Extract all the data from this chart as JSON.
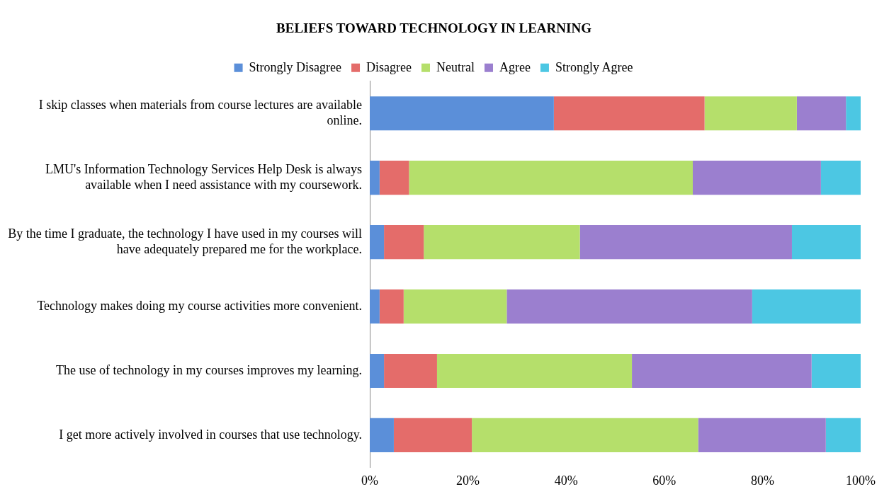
{
  "chart_data": {
    "type": "bar",
    "orientation": "horizontal",
    "stacked": true,
    "title": "BELIEFS TOWARD TECHNOLOGY IN LEARNING",
    "categories": [
      "I skip classes when materials from course lectures are available online.",
      "LMU's Information Technology Services Help Desk is always available when I need assistance with my coursework.",
      "By the time I graduate, the technology I have used in my courses will have adequately prepared me for the workplace.",
      "Technology makes doing my course activities more convenient.",
      "The use of technology in my courses improves my learning.",
      "I get more actively involved in courses that use technology."
    ],
    "series": [
      {
        "name": "Strongly Disagree",
        "color": "#5b8fd9",
        "values": [
          37.5,
          2,
          2.9,
          2,
          2.9,
          4.9
        ]
      },
      {
        "name": "Disagree",
        "color": "#e46c6a",
        "values": [
          30.7,
          6,
          8.1,
          4.9,
          10.8,
          15.9
        ]
      },
      {
        "name": "Neutral",
        "color": "#b5df6b",
        "values": [
          18.8,
          57.8,
          31.8,
          21,
          39.7,
          46.1
        ]
      },
      {
        "name": "Agree",
        "color": "#9b7fcf",
        "values": [
          10,
          26.1,
          43.2,
          50,
          36.6,
          26
        ]
      },
      {
        "name": "Strongly Agree",
        "color": "#4cc7e3",
        "values": [
          3,
          8.1,
          14,
          22.1,
          10,
          7.1
        ]
      }
    ],
    "xlim": [
      0,
      100
    ],
    "xticks": [
      {
        "value": 0,
        "label": "0%"
      },
      {
        "value": 20,
        "label": "20%"
      },
      {
        "value": 40,
        "label": "40%"
      },
      {
        "value": 60,
        "label": "60%"
      },
      {
        "value": 80,
        "label": "80%"
      },
      {
        "value": 100,
        "label": "100%"
      }
    ],
    "grid": false,
    "legend": "top"
  }
}
